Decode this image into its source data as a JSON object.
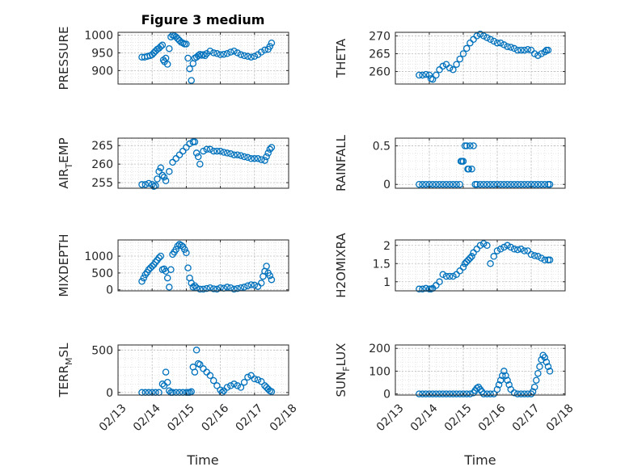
{
  "title": "Figure 3 medium",
  "xlabel": "Time",
  "marker_color": "#0072BD",
  "x_ticks": [
    "02/13",
    "02/14",
    "02/15",
    "02/16",
    "02/17",
    "02/18"
  ],
  "chart_data": [
    {
      "type": "scatter",
      "ylabel_main": "PRESSURE",
      "ylabel_sub": "",
      "yticks": [
        900,
        950,
        1000
      ],
      "ylim": [
        862,
        1008
      ],
      "xlim": [
        0,
        5
      ],
      "x": [
        0.7,
        0.78,
        0.86,
        0.94,
        1.0,
        1.05,
        1.1,
        1.15,
        1.2,
        1.25,
        1.3,
        1.33,
        1.36,
        1.4,
        1.45,
        1.5,
        1.55,
        1.6,
        1.65,
        1.7,
        1.75,
        1.8,
        1.85,
        1.9,
        1.95,
        2.0,
        2.05,
        2.1,
        2.15,
        2.2,
        2.25,
        2.3,
        2.35,
        2.4,
        2.45,
        2.5,
        2.55,
        2.6,
        2.7,
        2.8,
        2.9,
        3.0,
        3.1,
        3.2,
        3.3,
        3.4,
        3.5,
        3.6,
        3.7,
        3.8,
        3.9,
        4.0,
        4.1,
        4.2,
        4.3,
        4.4,
        4.45,
        4.5
      ],
      "y": [
        938,
        938,
        940,
        942,
        945,
        950,
        955,
        960,
        963,
        968,
        972,
        930,
        925,
        935,
        918,
        962,
        995,
        1000,
        998,
        995,
        990,
        985,
        980,
        978,
        975,
        975,
        935,
        905,
        872,
        920,
        935,
        938,
        942,
        946,
        943,
        945,
        942,
        948,
        955,
        950,
        948,
        945,
        946,
        948,
        952,
        955,
        950,
        945,
        942,
        940,
        938,
        940,
        945,
        952,
        958,
        960,
        968,
        978
      ]
    },
    {
      "type": "scatter",
      "ylabel_main": "THETA",
      "ylabel_sub": "",
      "yticks": [
        260,
        265,
        270
      ],
      "ylim": [
        256.5,
        271
      ],
      "xlim": [
        0,
        5
      ],
      "x": [
        0.7,
        0.8,
        0.9,
        1.0,
        1.05,
        1.1,
        1.2,
        1.3,
        1.4,
        1.5,
        1.6,
        1.7,
        1.8,
        1.9,
        2.0,
        2.1,
        2.2,
        2.3,
        2.4,
        2.5,
        2.6,
        2.7,
        2.8,
        2.9,
        3.0,
        3.1,
        3.2,
        3.3,
        3.4,
        3.5,
        3.6,
        3.7,
        3.8,
        3.9,
        4.0,
        4.1,
        4.2,
        4.3,
        4.4,
        4.45,
        4.5
      ],
      "y": [
        259,
        259,
        259.2,
        259,
        258,
        257.8,
        259,
        260.5,
        261.5,
        262,
        261,
        260.5,
        262,
        263.5,
        265,
        266.5,
        268,
        269,
        270,
        270.5,
        270,
        269.5,
        269,
        268.5,
        268,
        268,
        267.5,
        267,
        266.8,
        266.5,
        266,
        266,
        266,
        266.2,
        266,
        265,
        264.5,
        265,
        265.5,
        266,
        266
      ]
    },
    {
      "type": "scatter",
      "ylabel_main": "AIR",
      "ylabel_sub": "T",
      "ylabel_tail": "EMP",
      "yticks": [
        255,
        260,
        265
      ],
      "ylim": [
        253.5,
        267
      ],
      "xlim": [
        0,
        5
      ],
      "x": [
        0.7,
        0.8,
        0.9,
        1.0,
        1.05,
        1.1,
        1.15,
        1.2,
        1.25,
        1.3,
        1.35,
        1.4,
        1.5,
        1.6,
        1.7,
        1.8,
        1.9,
        2.0,
        2.1,
        2.2,
        2.25,
        2.3,
        2.35,
        2.4,
        2.5,
        2.6,
        2.7,
        2.8,
        2.9,
        3.0,
        3.1,
        3.2,
        3.3,
        3.4,
        3.5,
        3.6,
        3.7,
        3.8,
        3.9,
        4.0,
        4.1,
        4.2,
        4.3,
        4.35,
        4.4,
        4.45,
        4.5
      ],
      "y": [
        254.5,
        254.5,
        254.8,
        254.5,
        254,
        254.2,
        256,
        258,
        259,
        257,
        256.5,
        255.5,
        258,
        260.5,
        261.5,
        262.5,
        263.5,
        264.5,
        265.5,
        266,
        266,
        263,
        262,
        260,
        263.5,
        264,
        264,
        263.5,
        263.5,
        263.5,
        263.2,
        263,
        262.8,
        262.5,
        262.5,
        262.3,
        262,
        261.8,
        261.5,
        261.5,
        261.5,
        261.2,
        261,
        262,
        263,
        264,
        264.5
      ]
    },
    {
      "type": "scatter",
      "ylabel_main": "RAINFALL",
      "ylabel_sub": "",
      "yticks": [
        0,
        0.5
      ],
      "ylim": [
        -0.05,
        0.6
      ],
      "xlim": [
        0,
        5
      ],
      "x": [
        0.7,
        0.8,
        0.9,
        1.0,
        1.1,
        1.2,
        1.3,
        1.4,
        1.5,
        1.6,
        1.7,
        1.8,
        1.9,
        1.93,
        1.96,
        2.0,
        2.05,
        2.1,
        2.13,
        2.16,
        2.2,
        2.25,
        2.3,
        2.35,
        2.4,
        2.5,
        2.6,
        2.7,
        2.8,
        2.9,
        3.0,
        3.1,
        3.2,
        3.3,
        3.4,
        3.5,
        3.6,
        3.7,
        3.8,
        3.9,
        4.0,
        4.1,
        4.2,
        4.3,
        4.4,
        4.5,
        4.55
      ],
      "y": [
        0,
        0,
        0,
        0,
        0,
        0,
        0,
        0,
        0,
        0,
        0,
        0,
        0,
        0.3,
        0.3,
        0.3,
        0.5,
        0.5,
        0.2,
        0.2,
        0.5,
        0.2,
        0.5,
        0,
        0,
        0,
        0,
        0,
        0,
        0,
        0,
        0,
        0,
        0,
        0,
        0,
        0,
        0,
        0,
        0,
        0,
        0,
        0,
        0,
        0,
        0,
        0
      ]
    },
    {
      "type": "scatter",
      "ylabel_main": "MIXDEPTH",
      "ylabel_sub": "",
      "yticks": [
        0,
        500,
        1000
      ],
      "ylim": [
        -30,
        1480
      ],
      "xlim": [
        0,
        5
      ],
      "x": [
        0.7,
        0.75,
        0.8,
        0.85,
        0.9,
        0.95,
        1.0,
        1.05,
        1.1,
        1.15,
        1.2,
        1.25,
        1.3,
        1.35,
        1.4,
        1.45,
        1.5,
        1.55,
        1.6,
        1.65,
        1.7,
        1.75,
        1.8,
        1.85,
        1.9,
        1.95,
        2.0,
        2.05,
        2.1,
        2.15,
        2.2,
        2.25,
        2.3,
        2.4,
        2.5,
        2.6,
        2.7,
        2.8,
        2.9,
        3.0,
        3.1,
        3.2,
        3.3,
        3.4,
        3.5,
        3.6,
        3.7,
        3.8,
        3.9,
        4.0,
        4.1,
        4.2,
        4.25,
        4.3,
        4.35,
        4.4,
        4.45,
        4.5
      ],
      "y": [
        250,
        350,
        450,
        520,
        600,
        650,
        700,
        750,
        820,
        880,
        950,
        1000,
        600,
        620,
        550,
        350,
        80,
        600,
        1050,
        1120,
        1200,
        1300,
        1350,
        1320,
        1280,
        1200,
        1100,
        650,
        350,
        200,
        80,
        120,
        60,
        20,
        20,
        40,
        60,
        30,
        20,
        60,
        50,
        80,
        60,
        20,
        40,
        60,
        80,
        120,
        150,
        140,
        100,
        200,
        400,
        550,
        700,
        500,
        420,
        300
      ]
    },
    {
      "type": "scatter",
      "ylabel_main": "H2OMIXRA",
      "ylabel_sub": "",
      "yticks": [
        1,
        1.5,
        2
      ],
      "ylim": [
        0.75,
        2.15
      ],
      "xlim": [
        0,
        5
      ],
      "x": [
        0.7,
        0.8,
        0.9,
        1.0,
        1.05,
        1.1,
        1.2,
        1.3,
        1.4,
        1.5,
        1.6,
        1.7,
        1.8,
        1.9,
        2.0,
        2.05,
        2.1,
        2.15,
        2.2,
        2.25,
        2.3,
        2.4,
        2.5,
        2.6,
        2.7,
        2.8,
        2.9,
        3.0,
        3.1,
        3.2,
        3.3,
        3.4,
        3.5,
        3.6,
        3.7,
        3.8,
        3.9,
        4.0,
        4.1,
        4.2,
        4.3,
        4.4,
        4.5,
        4.55
      ],
      "y": [
        0.8,
        0.8,
        0.82,
        0.8,
        0.8,
        0.82,
        0.9,
        1.0,
        1.2,
        1.15,
        1.15,
        1.15,
        1.2,
        1.3,
        1.4,
        1.5,
        1.55,
        1.6,
        1.65,
        1.7,
        1.8,
        1.9,
        2.0,
        2.05,
        2.0,
        1.5,
        1.7,
        1.85,
        1.9,
        1.95,
        2.0,
        1.95,
        1.9,
        1.88,
        1.9,
        1.85,
        1.85,
        1.75,
        1.72,
        1.7,
        1.65,
        1.6,
        1.6,
        1.6
      ]
    },
    {
      "type": "scatter",
      "ylabel_main": "TERR",
      "ylabel_sub": "M",
      "ylabel_tail": "SL",
      "yticks": [
        0,
        500
      ],
      "ylim": [
        -30,
        560
      ],
      "xlim": [
        0,
        5
      ],
      "x": [
        0.7,
        0.8,
        0.9,
        1.0,
        1.1,
        1.2,
        1.3,
        1.35,
        1.4,
        1.45,
        1.5,
        1.55,
        1.6,
        1.7,
        1.8,
        1.9,
        2.0,
        2.05,
        2.1,
        2.15,
        2.2,
        2.25,
        2.3,
        2.35,
        2.4,
        2.5,
        2.6,
        2.7,
        2.8,
        2.9,
        3.0,
        3.05,
        3.1,
        3.2,
        3.3,
        3.4,
        3.5,
        3.6,
        3.7,
        3.8,
        3.9,
        4.0,
        4.1,
        4.2,
        4.3,
        4.35,
        4.4,
        4.45,
        4.5
      ],
      "y": [
        0,
        0,
        0,
        0,
        0,
        0,
        100,
        80,
        240,
        120,
        20,
        0,
        0,
        0,
        0,
        0,
        0,
        0,
        0,
        10,
        300,
        240,
        500,
        340,
        330,
        280,
        240,
        200,
        140,
        80,
        30,
        0,
        20,
        60,
        80,
        100,
        80,
        60,
        120,
        180,
        200,
        160,
        150,
        130,
        80,
        60,
        40,
        20,
        10
      ]
    },
    {
      "type": "scatter",
      "ylabel_main": "SUN",
      "ylabel_sub": "F",
      "ylabel_tail": "LUX",
      "yticks": [
        0,
        100,
        200
      ],
      "ylim": [
        -5,
        215
      ],
      "xlim": [
        0,
        5
      ],
      "x": [
        0.7,
        0.8,
        0.9,
        1.0,
        1.1,
        1.2,
        1.3,
        1.4,
        1.5,
        1.6,
        1.7,
        1.8,
        1.9,
        2.0,
        2.1,
        2.2,
        2.3,
        2.35,
        2.4,
        2.45,
        2.5,
        2.55,
        2.6,
        2.7,
        2.8,
        2.9,
        3.0,
        3.05,
        3.1,
        3.15,
        3.2,
        3.25,
        3.3,
        3.35,
        3.4,
        3.5,
        3.6,
        3.7,
        3.8,
        3.9,
        4.0,
        4.05,
        4.1,
        4.15,
        4.2,
        4.25,
        4.3,
        4.35,
        4.4,
        4.45,
        4.5,
        4.55
      ],
      "y": [
        0,
        0,
        0,
        0,
        0,
        0,
        0,
        0,
        0,
        0,
        0,
        0,
        0,
        0,
        0,
        0,
        5,
        15,
        25,
        30,
        20,
        10,
        0,
        0,
        0,
        0,
        20,
        40,
        60,
        80,
        100,
        80,
        60,
        40,
        20,
        5,
        0,
        0,
        0,
        0,
        0,
        10,
        30,
        60,
        90,
        120,
        150,
        170,
        160,
        140,
        120,
        100
      ]
    }
  ]
}
